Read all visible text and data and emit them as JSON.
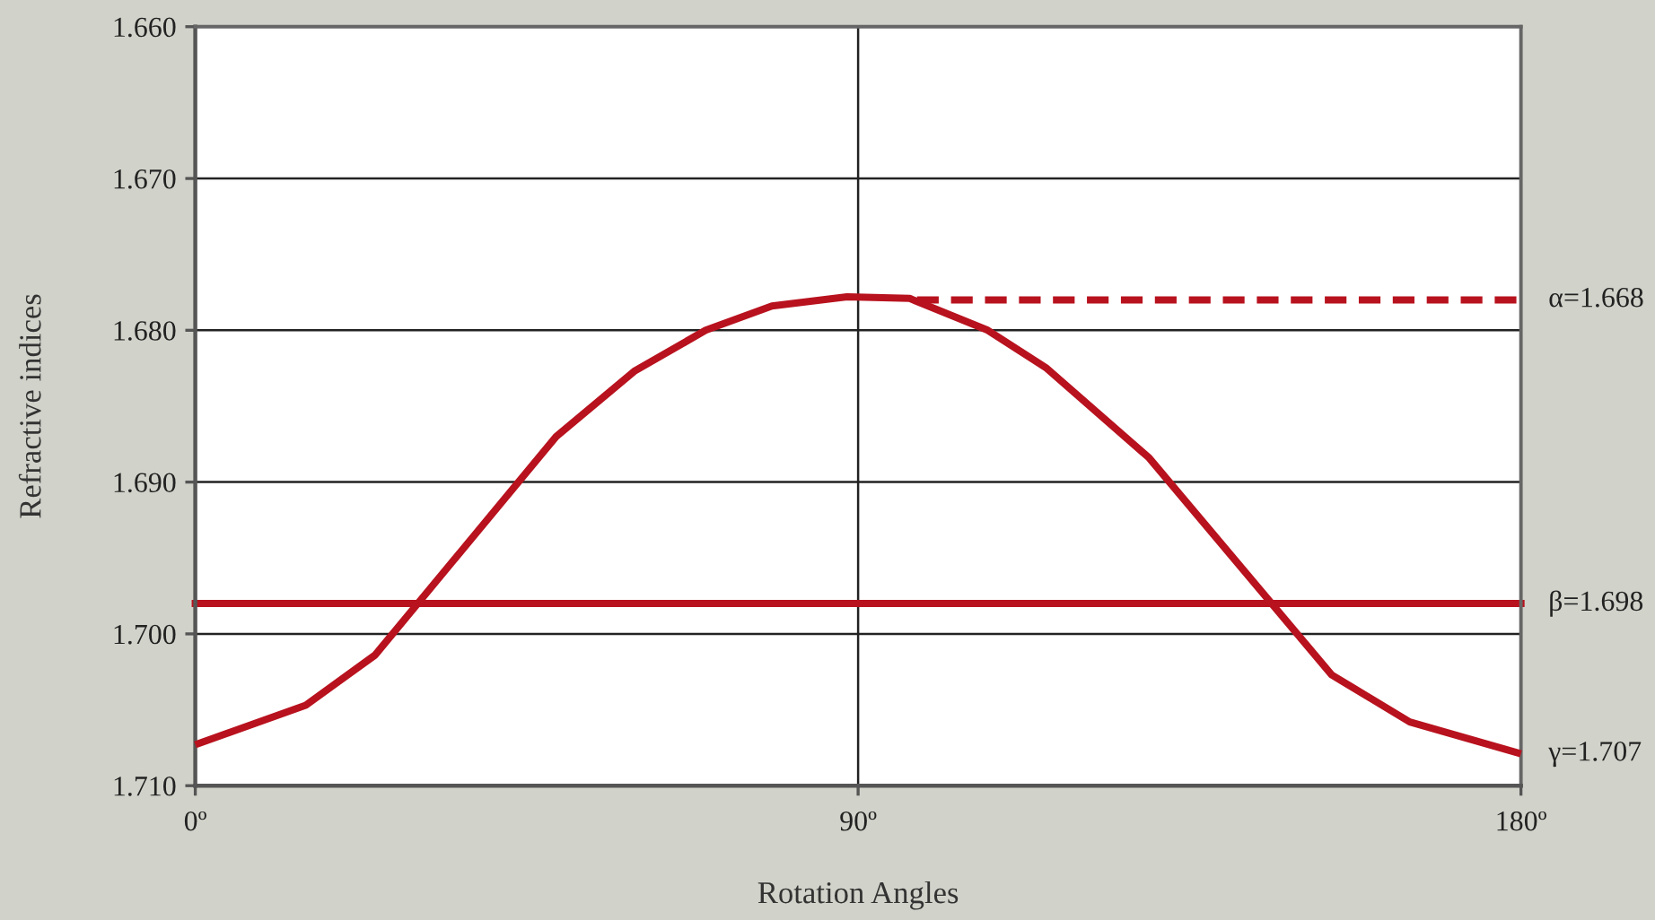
{
  "chart_data": {
    "type": "line",
    "xlabel": "Rotation Angles",
    "ylabel": "Refractive indices",
    "xlim": [
      0,
      180
    ],
    "ylim": [
      1.71,
      1.66
    ],
    "xticks": [
      {
        "value": 0,
        "label": "0º"
      },
      {
        "value": 90,
        "label": "90º"
      },
      {
        "value": 180,
        "label": "180º"
      }
    ],
    "yticks": [
      {
        "value": 1.66,
        "label": "1.660"
      },
      {
        "value": 1.67,
        "label": "1.670"
      },
      {
        "value": 1.68,
        "label": "1.680"
      },
      {
        "value": 1.69,
        "label": "1.690"
      },
      {
        "value": 1.7,
        "label": "1.700"
      },
      {
        "value": 1.71,
        "label": "1.710"
      }
    ],
    "grid": true,
    "series": [
      {
        "color": "#b8121e",
        "line_style": "solid",
        "x": [
          0,
          15,
          24.4,
          49,
          59.6,
          69.3,
          78.3,
          88.5,
          97,
          107.6,
          115.6,
          129.5,
          154.3,
          164.9,
          180
        ],
        "values": [
          1.7073,
          1.7047,
          1.7014,
          1.687,
          1.6827,
          1.68,
          1.6784,
          1.6778,
          1.6779,
          1.68,
          1.6825,
          1.6884,
          1.7027,
          1.7058,
          1.7079
        ]
      },
      {
        "color": "#b8121e",
        "line_style": "dashed",
        "x": [
          98,
          180
        ],
        "values": [
          1.678,
          1.678
        ]
      }
    ],
    "ref_lines": [
      {
        "axis": "y",
        "value": 1.698,
        "label": "β=1.698",
        "color": "#b8121e",
        "line_style": "solid"
      }
    ],
    "annotations": [
      {
        "text": "α=1.668",
        "x": 180,
        "y": 1.678
      },
      {
        "text": "γ=1.707",
        "x": 180,
        "y": 1.7079
      }
    ]
  }
}
